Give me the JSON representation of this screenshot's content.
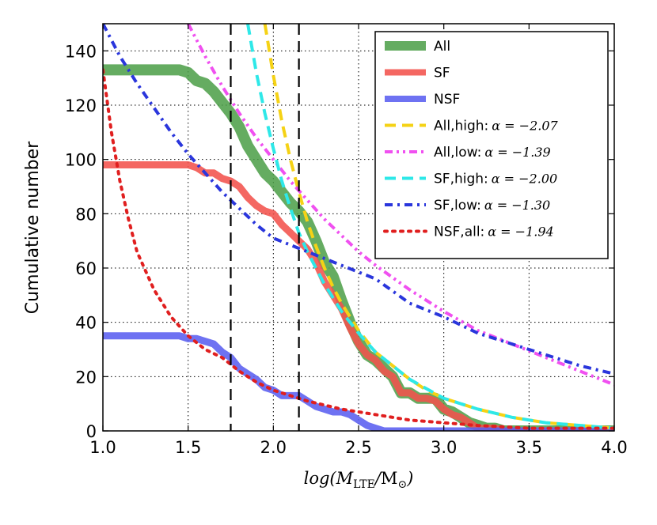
{
  "chart_data": {
    "type": "line",
    "title": "",
    "xlabel": "log(M_LTE/M_⊙)",
    "ylabel": "Cumulative number",
    "xlim": [
      1.0,
      4.0
    ],
    "ylim": [
      0,
      150
    ],
    "x_ticks": [
      "1.0",
      "1.5",
      "2.0",
      "2.5",
      "3.0",
      "3.5",
      "4.0"
    ],
    "y_ticks": [
      "0",
      "20",
      "40",
      "60",
      "80",
      "100",
      "120",
      "140"
    ],
    "grid": true,
    "legend_position": "top-right",
    "vertical_lines": [
      1.75,
      2.15
    ],
    "colors": {
      "all": "#4a9e45",
      "sf": "#f2524c",
      "nsf": "#5a5ef0",
      "all_high": "#f5d215",
      "all_low": "#f050f0",
      "sf_high": "#2ee8e8",
      "sf_low": "#2a36dc",
      "nsf_all": "#e01f1f"
    },
    "series": [
      {
        "key": "all",
        "name": "All",
        "style": "thick",
        "x": [
          1.0,
          1.45,
          1.5,
          1.55,
          1.6,
          1.65,
          1.7,
          1.75,
          1.8,
          1.85,
          1.9,
          1.95,
          2.0,
          2.05,
          2.1,
          2.15,
          2.2,
          2.25,
          2.3,
          2.35,
          2.4,
          2.45,
          2.5,
          2.55,
          2.6,
          2.65,
          2.7,
          2.75,
          2.8,
          2.85,
          2.9,
          2.95,
          3.0,
          3.05,
          3.1,
          3.15,
          3.2,
          3.25,
          3.3,
          3.35,
          3.5,
          3.7,
          3.8,
          3.9,
          4.0
        ],
        "y": [
          133,
          133,
          132,
          129,
          128,
          125,
          121,
          117,
          112,
          105,
          100,
          95,
          92,
          88,
          84,
          81,
          77,
          70,
          62,
          57,
          48,
          40,
          33,
          28,
          26,
          23,
          20,
          14,
          14,
          12,
          12,
          12,
          8,
          7,
          5,
          3,
          2,
          1,
          1,
          0,
          0,
          0,
          0,
          0,
          0
        ]
      },
      {
        "key": "sf",
        "name": "SF",
        "style": "thick",
        "x": [
          1.0,
          1.5,
          1.55,
          1.6,
          1.65,
          1.7,
          1.75,
          1.8,
          1.85,
          1.9,
          1.95,
          2.0,
          2.05,
          2.1,
          2.15,
          2.2,
          2.25,
          2.3,
          2.35,
          2.4,
          2.45,
          2.5,
          2.55,
          2.6,
          2.65,
          2.7,
          2.75,
          2.8,
          2.85,
          2.9,
          2.95,
          3.0,
          3.05,
          3.1,
          3.15,
          3.2,
          3.25,
          3.3,
          3.35,
          3.5,
          3.7,
          4.0
        ],
        "y": [
          98,
          98,
          97,
          95,
          95,
          93,
          92,
          90,
          86,
          83,
          81,
          80,
          76,
          73,
          70,
          67,
          62,
          55,
          50,
          45,
          38,
          32,
          28,
          26,
          22,
          20,
          14,
          14,
          12,
          12,
          11,
          8,
          6,
          5,
          3,
          1,
          1,
          1,
          0,
          0,
          0,
          0
        ]
      },
      {
        "key": "nsf",
        "name": "NSF",
        "style": "thick",
        "x": [
          1.0,
          1.45,
          1.5,
          1.55,
          1.6,
          1.65,
          1.7,
          1.75,
          1.8,
          1.85,
          1.9,
          1.95,
          2.0,
          2.05,
          2.1,
          2.15,
          2.2,
          2.25,
          2.3,
          2.35,
          2.4,
          2.45,
          2.5,
          2.55,
          2.6,
          2.65,
          2.7,
          3.0,
          3.5,
          4.0
        ],
        "y": [
          35,
          35,
          34,
          34,
          33,
          32,
          29,
          27,
          23,
          21,
          19,
          16,
          15,
          13,
          13,
          13,
          11,
          9,
          8,
          7,
          7,
          6,
          4,
          2,
          1,
          0,
          0,
          0,
          0,
          0
        ]
      },
      {
        "key": "all_high",
        "name": "All,high:",
        "alpha": "α = −2.07",
        "style": "dashed",
        "x": [
          1.95,
          2.0,
          2.05,
          2.1,
          2.15,
          2.2,
          2.25,
          2.3,
          2.35,
          2.4,
          2.45,
          2.5,
          2.6,
          2.7,
          2.8,
          2.9,
          3.0,
          3.2,
          3.4,
          3.6,
          3.8,
          4.0
        ],
        "y": [
          150,
          131,
          114,
          100,
          88,
          77,
          68,
          60,
          53,
          47,
          42,
          37,
          29,
          24,
          19,
          15,
          12,
          8,
          5,
          3,
          2,
          1
        ]
      },
      {
        "key": "all_low",
        "name": "All,low:",
        "alpha": "α = −1.39",
        "style": "dashdotdot",
        "x": [
          1.5,
          1.6,
          1.7,
          1.8,
          1.9,
          2.0,
          2.1,
          2.2,
          2.3,
          2.4,
          2.5,
          2.6,
          2.8,
          3.0,
          3.2,
          3.4,
          3.6,
          3.8,
          4.0
        ],
        "y": [
          150,
          138,
          127,
          117,
          108,
          100,
          92,
          85,
          78,
          72,
          66,
          61,
          52,
          44,
          37,
          32,
          27,
          22,
          17
        ]
      },
      {
        "key": "sf_high",
        "name": "SF,high:",
        "alpha": "α = −2.00",
        "style": "dashed",
        "x": [
          1.85,
          1.9,
          1.95,
          2.0,
          2.05,
          2.1,
          2.15,
          2.2,
          2.3,
          2.4,
          2.5,
          2.6,
          2.8,
          3.0,
          3.2,
          3.4,
          3.6,
          3.8,
          4.0
        ],
        "y": [
          150,
          132,
          117,
          104,
          92,
          82,
          73,
          66,
          54,
          44,
          36,
          29,
          19,
          12,
          8,
          5,
          3,
          2,
          1
        ]
      },
      {
        "key": "sf_low",
        "name": "SF,low:",
        "alpha": "α = −1.30",
        "style": "dashdot",
        "x": [
          1.0,
          1.1,
          1.2,
          1.3,
          1.4,
          1.5,
          1.6,
          1.7,
          1.8,
          1.9,
          2.0,
          2.2,
          2.4,
          2.6,
          2.8,
          3.0,
          3.2,
          3.4,
          3.6,
          3.8,
          4.0
        ],
        "y": [
          150,
          138,
          128,
          119,
          110,
          102,
          95,
          88,
          82,
          76,
          71,
          66,
          61,
          56,
          47,
          42,
          36,
          32,
          28,
          24,
          21
        ]
      },
      {
        "key": "nsf_all",
        "name": "NSF,all:",
        "alpha": "α = −1.94",
        "style": "dotted",
        "x": [
          1.0,
          1.05,
          1.1,
          1.15,
          1.2,
          1.3,
          1.4,
          1.5,
          1.6,
          1.7,
          1.8,
          1.9,
          2.0,
          2.1,
          2.2,
          2.4,
          2.6,
          2.8,
          3.0,
          3.2,
          3.5,
          3.8,
          4.0
        ],
        "y": [
          133,
          110,
          92,
          78,
          66,
          52,
          42,
          35,
          30,
          27,
          22,
          18,
          15,
          13,
          11,
          8,
          6,
          4,
          3,
          2,
          1,
          1,
          1
        ]
      }
    ]
  }
}
